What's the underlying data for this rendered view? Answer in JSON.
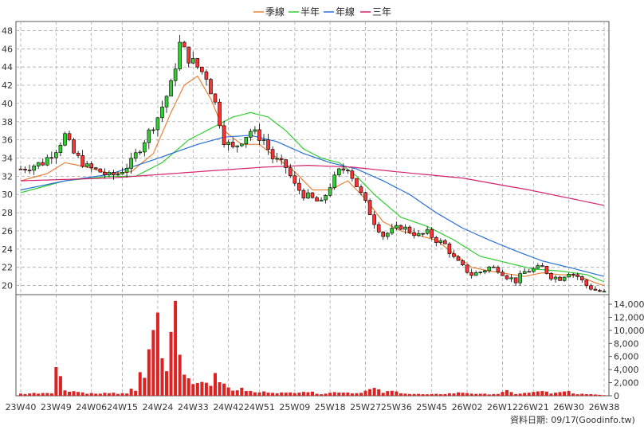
{
  "chart_data": {
    "type": "candlestick",
    "legend": [
      {
        "label": "季線",
        "color": "#e8823a"
      },
      {
        "label": "半年",
        "color": "#33cc33"
      },
      {
        "label": "年線",
        "color": "#2a6fd6"
      },
      {
        "label": "三年",
        "color": "#d4236f"
      }
    ],
    "price_axis": {
      "ticks": [
        "20",
        "22",
        "24",
        "26",
        "28",
        "30",
        "32",
        "34",
        "36",
        "38",
        "40",
        "42",
        "44",
        "46",
        "48"
      ],
      "min": 19,
      "max": 49
    },
    "volume_axis": {
      "ticks": [
        "0",
        "2,000",
        "4,000",
        "6,000",
        "8,000",
        "10,000",
        "12,000",
        "14,000"
      ],
      "min": 0,
      "max": 14000
    },
    "x_ticks": [
      "23W40",
      "23W49",
      "24W06",
      "24W15",
      "24W24",
      "24W33",
      "24W42",
      "24W51",
      "25W09",
      "25W18",
      "25W27",
      "25W36",
      "25W45",
      "26W02",
      "26W12",
      "26W21",
      "26W30",
      "26W38"
    ],
    "footer": "資料日期: 09/17",
    "source": "(Goodinfo.tw)",
    "up_color": "#33cc33",
    "down_color": "#ff3333",
    "volume_color": "#dd2222",
    "price_knots": [
      [
        0,
        32.8
      ],
      [
        5,
        33.5
      ],
      [
        8,
        35
      ],
      [
        10,
        36.5
      ],
      [
        12,
        34.5
      ],
      [
        15,
        33
      ],
      [
        18,
        32.5
      ],
      [
        20,
        32
      ],
      [
        22,
        32.3
      ],
      [
        25,
        33.5
      ],
      [
        28,
        36
      ],
      [
        31,
        38.5
      ],
      [
        34,
        42
      ],
      [
        36,
        46.5
      ],
      [
        38,
        45
      ],
      [
        40,
        44
      ],
      [
        42,
        43
      ],
      [
        44,
        40
      ],
      [
        46,
        36
      ],
      [
        48,
        35
      ],
      [
        50,
        36
      ],
      [
        52,
        37
      ],
      [
        55,
        36
      ],
      [
        57,
        34
      ],
      [
        60,
        33
      ],
      [
        62,
        31
      ],
      [
        64,
        30
      ],
      [
        66,
        29.5
      ],
      [
        68,
        29
      ],
      [
        70,
        31
      ],
      [
        72,
        32.5
      ],
      [
        74,
        33
      ],
      [
        76,
        31
      ],
      [
        78,
        29
      ],
      [
        80,
        27
      ],
      [
        82,
        25.5
      ],
      [
        84,
        26
      ],
      [
        86,
        26.5
      ],
      [
        88,
        26
      ],
      [
        90,
        25.5
      ],
      [
        92,
        25.8
      ],
      [
        94,
        25
      ],
      [
        96,
        24.5
      ],
      [
        98,
        23
      ],
      [
        100,
        22
      ],
      [
        102,
        21.2
      ],
      [
        104,
        21.5
      ],
      [
        106,
        22
      ],
      [
        108,
        21.8
      ],
      [
        110,
        21
      ],
      [
        112,
        20.5
      ],
      [
        114,
        21.5
      ],
      [
        116,
        21.8
      ],
      [
        118,
        22
      ],
      [
        120,
        21
      ],
      [
        122,
        20.8
      ],
      [
        124,
        21.5
      ],
      [
        126,
        21
      ],
      [
        128,
        20
      ],
      [
        130,
        19.5
      ],
      [
        132,
        19.2
      ]
    ],
    "q_ma_knots": [
      [
        0,
        31.5
      ],
      [
        6,
        32.3
      ],
      [
        10,
        33.5
      ],
      [
        15,
        33
      ],
      [
        20,
        32.3
      ],
      [
        25,
        32.5
      ],
      [
        30,
        34.5
      ],
      [
        34,
        39
      ],
      [
        37,
        42
      ],
      [
        40,
        43
      ],
      [
        43,
        40.5
      ],
      [
        46,
        37
      ],
      [
        50,
        35.5
      ],
      [
        54,
        35.5
      ],
      [
        58,
        34
      ],
      [
        62,
        32.5
      ],
      [
        66,
        30.5
      ],
      [
        70,
        30.5
      ],
      [
        74,
        31.5
      ],
      [
        78,
        29.5
      ],
      [
        82,
        27
      ],
      [
        86,
        26
      ],
      [
        90,
        25.5
      ],
      [
        94,
        25
      ],
      [
        98,
        23.5
      ],
      [
        102,
        22
      ],
      [
        106,
        21.6
      ],
      [
        110,
        21.3
      ],
      [
        114,
        21
      ],
      [
        118,
        21.4
      ],
      [
        122,
        21.2
      ],
      [
        126,
        21.1
      ],
      [
        130,
        20.3
      ],
      [
        132,
        20
      ]
    ],
    "h_ma_knots": [
      [
        0,
        30.2
      ],
      [
        10,
        31.5
      ],
      [
        20,
        32
      ],
      [
        26,
        32
      ],
      [
        32,
        33.5
      ],
      [
        38,
        36
      ],
      [
        44,
        37.5
      ],
      [
        48,
        38.5
      ],
      [
        52,
        39
      ],
      [
        56,
        38.5
      ],
      [
        60,
        37
      ],
      [
        64,
        35
      ],
      [
        68,
        34
      ],
      [
        72,
        33.5
      ],
      [
        76,
        32
      ],
      [
        80,
        30
      ],
      [
        86,
        27.5
      ],
      [
        92,
        26.5
      ],
      [
        98,
        25
      ],
      [
        104,
        23.2
      ],
      [
        110,
        22.5
      ],
      [
        116,
        21.8
      ],
      [
        122,
        21.6
      ],
      [
        128,
        21.2
      ],
      [
        132,
        20.4
      ]
    ],
    "y_ma_knots": [
      [
        0,
        30.5
      ],
      [
        10,
        31.5
      ],
      [
        20,
        32.2
      ],
      [
        30,
        33.8
      ],
      [
        40,
        35.5
      ],
      [
        46,
        36.3
      ],
      [
        52,
        36.5
      ],
      [
        58,
        35.8
      ],
      [
        64,
        34.5
      ],
      [
        70,
        33.5
      ],
      [
        76,
        32.8
      ],
      [
        82,
        31.5
      ],
      [
        88,
        30
      ],
      [
        94,
        28
      ],
      [
        100,
        26.3
      ],
      [
        106,
        25
      ],
      [
        112,
        23.8
      ],
      [
        118,
        22.7
      ],
      [
        124,
        22
      ],
      [
        128,
        21.5
      ],
      [
        132,
        21
      ]
    ],
    "t_ma_knots": [
      [
        0,
        31.5
      ],
      [
        20,
        31.8
      ],
      [
        40,
        32.5
      ],
      [
        55,
        33
      ],
      [
        65,
        33.2
      ],
      [
        75,
        33
      ],
      [
        85,
        32.5
      ],
      [
        100,
        31.8
      ],
      [
        115,
        30.5
      ],
      [
        125,
        29.5
      ],
      [
        132,
        28.8
      ]
    ],
    "volume_knots": [
      [
        0,
        300
      ],
      [
        7,
        500
      ],
      [
        8,
        4500
      ],
      [
        10,
        900
      ],
      [
        15,
        400
      ],
      [
        18,
        300
      ],
      [
        20,
        500
      ],
      [
        22,
        250
      ],
      [
        24,
        400
      ],
      [
        25,
        1200
      ],
      [
        26,
        800
      ],
      [
        27,
        3000
      ],
      [
        28,
        2500
      ],
      [
        29,
        6000
      ],
      [
        30,
        10500
      ],
      [
        31,
        13500
      ],
      [
        32,
        5000
      ],
      [
        33,
        4500
      ],
      [
        34,
        8500
      ],
      [
        35,
        14000
      ],
      [
        36,
        6000
      ],
      [
        37,
        3500
      ],
      [
        38,
        2500
      ],
      [
        40,
        2000
      ],
      [
        42,
        2500
      ],
      [
        43,
        1500
      ],
      [
        44,
        4000
      ],
      [
        46,
        1500
      ],
      [
        48,
        900
      ],
      [
        50,
        1000
      ],
      [
        53,
        500
      ],
      [
        56,
        600
      ],
      [
        60,
        400
      ],
      [
        64,
        700
      ],
      [
        68,
        300
      ],
      [
        72,
        600
      ],
      [
        76,
        400
      ],
      [
        80,
        1100
      ],
      [
        82,
        500
      ],
      [
        84,
        700
      ],
      [
        88,
        300
      ],
      [
        92,
        200
      ],
      [
        96,
        300
      ],
      [
        100,
        500
      ],
      [
        104,
        250
      ],
      [
        108,
        300
      ],
      [
        110,
        700
      ],
      [
        112,
        300
      ],
      [
        116,
        500
      ],
      [
        118,
        800
      ],
      [
        120,
        300
      ],
      [
        124,
        700
      ],
      [
        126,
        200
      ],
      [
        128,
        300
      ],
      [
        130,
        200
      ],
      [
        132,
        100
      ]
    ]
  }
}
